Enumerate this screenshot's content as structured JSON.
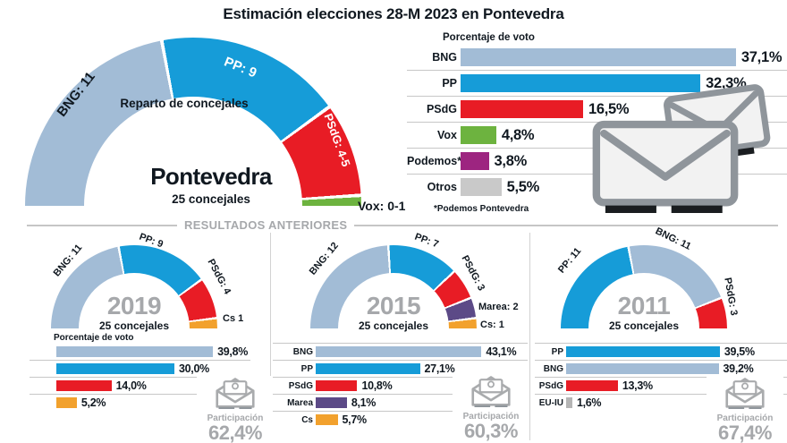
{
  "title": "Estimación elecciones 28-M 2023 en Pontevedra",
  "section_divider": "RESULTADOS ANTERIORES",
  "chart_data": [
    {
      "id": "estimacion-concejales",
      "type": "pie",
      "subtype": "half-donut",
      "title": "Reparto de concejales",
      "center_title": "Pontevedra",
      "center_subtitle": "25 concejales",
      "total_seats": 25,
      "categories": [
        "BNG",
        "PP",
        "PSdG",
        "Vox"
      ],
      "values": [
        11,
        9,
        4.5,
        0.5
      ],
      "segment_labels": [
        "BNG: 11",
        "PP: 9",
        "PSdG: 4-5",
        "Vox: 0-1"
      ],
      "colors": [
        "#a2bcd6",
        "#169cd8",
        "#e81c25",
        "#6db33f"
      ]
    },
    {
      "id": "estimacion-porcentaje-voto",
      "type": "bar",
      "orientation": "horizontal",
      "title": "Porcentaje de voto",
      "footnote": "*Podemos Pontevedra",
      "categories": [
        "BNG",
        "PP",
        "PSdG",
        "Vox",
        "Podemos*",
        "Otros"
      ],
      "values": [
        37.1,
        32.3,
        16.5,
        4.8,
        3.8,
        5.5
      ],
      "value_labels": [
        "37,1%",
        "32,3%",
        "16,5%",
        "4,8%",
        "3,8%",
        "5,5%"
      ],
      "colors": [
        "#a2bcd6",
        "#169cd8",
        "#e81c25",
        "#6db33f",
        "#9d2580",
        "#c9c9c9"
      ],
      "xlim": [
        0,
        40
      ]
    },
    {
      "id": "2019-concejales",
      "type": "pie",
      "subtype": "half-donut",
      "year": "2019",
      "center_subtitle": "25 concejales",
      "total_seats": 25,
      "categories": [
        "BNG",
        "PP",
        "PSdG",
        "Cs"
      ],
      "values": [
        11,
        9,
        4,
        1
      ],
      "segment_labels": [
        "BNG: 11",
        "PP: 9",
        "PSdG: 4",
        "Cs 1"
      ],
      "colors": [
        "#a2bcd6",
        "#169cd8",
        "#e81c25",
        "#f2a12d"
      ]
    },
    {
      "id": "2019-porcentaje-voto",
      "type": "bar",
      "orientation": "horizontal",
      "title": "Porcentaje de voto",
      "category_labels_visible": false,
      "categories": [
        "BNG",
        "PP",
        "PSdG",
        "Cs"
      ],
      "values": [
        39.8,
        30.0,
        14.0,
        5.2
      ],
      "value_labels": [
        "39,8%",
        "30,0%",
        "14,0%",
        "5,2%"
      ],
      "colors": [
        "#a2bcd6",
        "#169cd8",
        "#e81c25",
        "#f2a12d"
      ],
      "xlim": [
        0,
        45
      ],
      "participation": {
        "label": "Participación",
        "value": "62,4%"
      }
    },
    {
      "id": "2015-concejales",
      "type": "pie",
      "subtype": "half-donut",
      "year": "2015",
      "center_subtitle": "25 concejales",
      "total_seats": 25,
      "categories": [
        "BNG",
        "PP",
        "PSdG",
        "Marea",
        "Cs"
      ],
      "values": [
        12,
        7,
        3,
        2,
        1
      ],
      "segment_labels": [
        "BNG: 12",
        "PP: 7",
        "PSdG: 3",
        "Marea: 2",
        "Cs: 1"
      ],
      "colors": [
        "#a2bcd6",
        "#169cd8",
        "#e81c25",
        "#5c4a87",
        "#f2a12d"
      ]
    },
    {
      "id": "2015-porcentaje-voto",
      "type": "bar",
      "orientation": "horizontal",
      "categories": [
        "BNG",
        "PP",
        "PSdG",
        "Marea",
        "Cs"
      ],
      "values": [
        43.1,
        27.1,
        10.8,
        8.1,
        5.7
      ],
      "value_labels": [
        "43,1%",
        "27,1%",
        "10,8%",
        "8,1%",
        "5,7%"
      ],
      "colors": [
        "#a2bcd6",
        "#169cd8",
        "#e81c25",
        "#5c4a87",
        "#f2a12d"
      ],
      "xlim": [
        0,
        45
      ],
      "participation": {
        "label": "Participación",
        "value": "60,3%"
      }
    },
    {
      "id": "2011-concejales",
      "type": "pie",
      "subtype": "half-donut",
      "year": "2011",
      "center_subtitle": "25 concejales",
      "total_seats": 25,
      "categories": [
        "PP",
        "BNG",
        "PSdG"
      ],
      "values": [
        11,
        11,
        3
      ],
      "segment_labels": [
        "PP: 11",
        "BNG: 11",
        "PSdG: 3"
      ],
      "colors": [
        "#169cd8",
        "#a2bcd6",
        "#e81c25"
      ]
    },
    {
      "id": "2011-porcentaje-voto",
      "type": "bar",
      "orientation": "horizontal",
      "categories": [
        "PP",
        "BNG",
        "PSdG",
        "EU-IU"
      ],
      "values": [
        39.5,
        39.2,
        13.3,
        1.6
      ],
      "value_labels": [
        "39,5%",
        "39,2%",
        "13,3%",
        "1,6%"
      ],
      "colors": [
        "#169cd8",
        "#a2bcd6",
        "#e81c25",
        "#b5b5b5"
      ],
      "xlim": [
        0,
        45
      ],
      "participation": {
        "label": "Participación",
        "value": "67,4%"
      }
    }
  ]
}
